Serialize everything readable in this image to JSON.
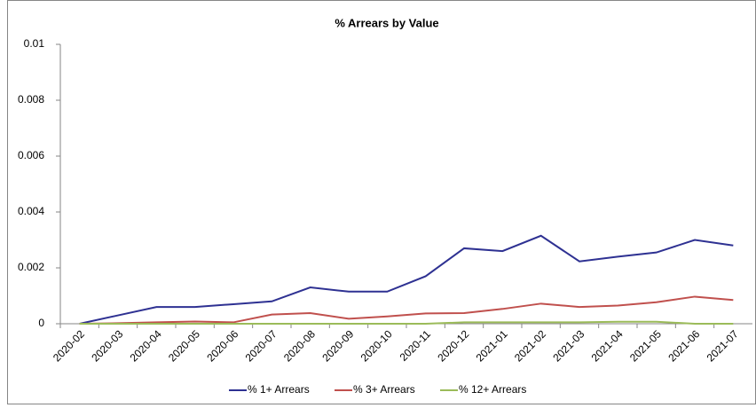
{
  "chart_data": {
    "type": "line",
    "title": "% Arrears by Value",
    "categories": [
      "2020-02",
      "2020-03",
      "2020-04",
      "2020-05",
      "2020-06",
      "2020-07",
      "2020-08",
      "2020-09",
      "2020-10",
      "2020-11",
      "2020-12",
      "2021-01",
      "2021-02",
      "2021-03",
      "2021-04",
      "2021-05",
      "2021-06",
      "2021-07"
    ],
    "series": [
      {
        "name": "% 1+ Arrears",
        "color": "#2e3192",
        "values": [
          0,
          0.0003,
          0.0006,
          0.0006,
          0.0007,
          0.0008,
          0.0013,
          0.00115,
          0.00115,
          0.0017,
          0.0027,
          0.0026,
          0.00315,
          0.00223,
          0.0024,
          0.00255,
          0.003,
          0.0028
        ]
      },
      {
        "name": "% 3+ Arrears",
        "color": "#c0504d",
        "values": [
          0,
          2e-05,
          5e-05,
          8e-05,
          5e-05,
          0.00033,
          0.00038,
          0.00018,
          0.00026,
          0.00037,
          0.00038,
          0.00053,
          0.00072,
          0.0006,
          0.00065,
          0.00077,
          0.00097,
          0.00085
        ]
      },
      {
        "name": "% 12+ Arrears",
        "color": "#9bbb59",
        "values": [
          0,
          0,
          0,
          0,
          0,
          0,
          0,
          0,
          0,
          0,
          5e-05,
          5e-05,
          5e-05,
          5e-05,
          7e-05,
          7e-05,
          0,
          0
        ]
      }
    ],
    "ylim": [
      0,
      0.01
    ],
    "yticks": [
      0,
      0.002,
      0.004,
      0.006,
      0.008,
      0.01
    ],
    "grid": true,
    "legend": "bottom"
  }
}
